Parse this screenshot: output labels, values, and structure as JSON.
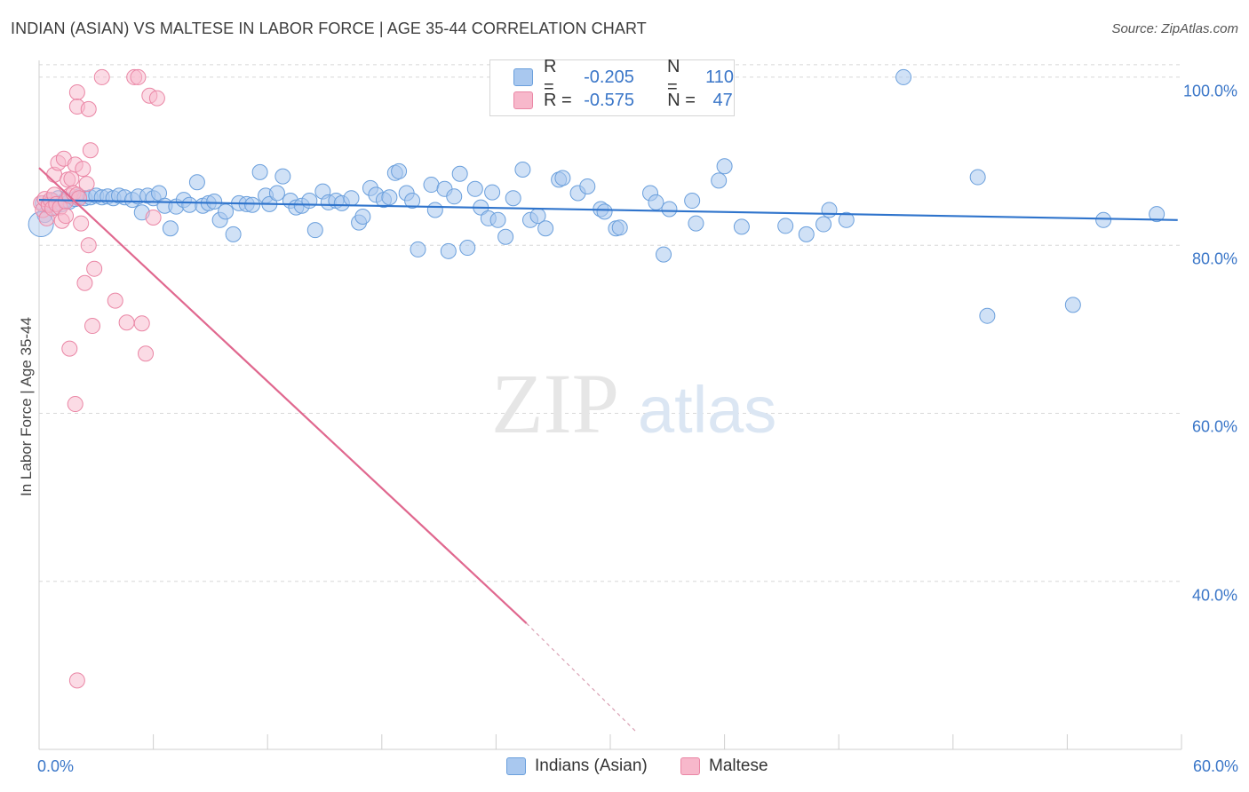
{
  "header": {
    "title": "INDIAN (ASIAN) VS MALTESE IN LABOR FORCE | AGE 35-44 CORRELATION CHART",
    "source": "Source: ZipAtlas.com"
  },
  "watermark": {
    "zip": "ZIP",
    "atlas": "atlas"
  },
  "colors": {
    "blue_fill": "#a9c8ef",
    "blue_stroke": "#6a9fdc",
    "blue_line": "#2f74cc",
    "pink_fill": "#f7b8cb",
    "pink_stroke": "#ea86a5",
    "pink_line": "#e0688f",
    "grid": "#d8d8d8",
    "tick_text": "#3a76c8"
  },
  "legend": {
    "rows": [
      {
        "r_label": "R =",
        "r_value": "-0.205",
        "n_label": "N =",
        "n_value": "110"
      },
      {
        "r_label": "R =",
        "r_value": "-0.575",
        "n_label": "N =",
        "n_value": "47"
      }
    ],
    "bottom": [
      "Indians (Asian)",
      "Maltese"
    ]
  },
  "chart_data": {
    "type": "scatter",
    "title": "INDIAN (ASIAN) VS MALTESE IN LABOR FORCE | AGE 35-44 CORRELATION CHART",
    "xlabel": "",
    "ylabel": "In Labor Force | Age 35-44",
    "xlim": [
      0,
      60
    ],
    "ylim": [
      20,
      102
    ],
    "x_tick_labels": [
      "0.0%",
      "60.0%"
    ],
    "y_ticks": [
      40,
      60,
      80,
      100
    ],
    "y_tick_labels": [
      "40.0%",
      "60.0%",
      "80.0%",
      "100.0%"
    ],
    "grid": "horizontal dashed",
    "legend_position": "top-center",
    "series": [
      {
        "name": "Indians (Asian)",
        "r": -0.205,
        "n": 110,
        "trend": {
          "x": [
            0,
            59.8
          ],
          "y": [
            85.4,
            83.0
          ],
          "dashed_after": null
        },
        "points": [
          [
            0.2,
            85.0
          ],
          [
            0.3,
            83.6
          ],
          [
            0.5,
            84.8
          ],
          [
            0.7,
            85.3
          ],
          [
            0.8,
            84.5
          ],
          [
            1.0,
            85.6
          ],
          [
            1.2,
            84.9
          ],
          [
            1.4,
            85.4
          ],
          [
            1.6,
            85.2
          ],
          [
            1.9,
            85.5
          ],
          [
            2.1,
            85.8
          ],
          [
            2.4,
            85.6
          ],
          [
            2.7,
            85.7
          ],
          [
            3.0,
            85.9
          ],
          [
            3.3,
            85.7
          ],
          [
            3.6,
            85.8
          ],
          [
            3.9,
            85.6
          ],
          [
            4.2,
            85.9
          ],
          [
            4.5,
            85.7
          ],
          [
            4.9,
            85.4
          ],
          [
            5.2,
            85.8
          ],
          [
            5.4,
            83.9
          ],
          [
            5.7,
            85.9
          ],
          [
            6.0,
            85.6
          ],
          [
            6.3,
            86.2
          ],
          [
            6.6,
            84.7
          ],
          [
            6.9,
            82.0
          ],
          [
            7.2,
            84.6
          ],
          [
            7.6,
            85.4
          ],
          [
            7.9,
            84.8
          ],
          [
            8.3,
            87.5
          ],
          [
            8.6,
            84.7
          ],
          [
            8.9,
            85.0
          ],
          [
            9.2,
            85.2
          ],
          [
            9.5,
            83.0
          ],
          [
            9.8,
            84.0
          ],
          [
            10.2,
            81.3
          ],
          [
            10.5,
            85.0
          ],
          [
            10.9,
            84.9
          ],
          [
            11.2,
            84.8
          ],
          [
            11.6,
            88.7
          ],
          [
            11.9,
            85.9
          ],
          [
            12.1,
            84.9
          ],
          [
            12.5,
            86.2
          ],
          [
            12.8,
            88.2
          ],
          [
            13.2,
            85.3
          ],
          [
            13.5,
            84.5
          ],
          [
            13.8,
            84.7
          ],
          [
            14.2,
            85.3
          ],
          [
            14.5,
            81.8
          ],
          [
            14.9,
            86.4
          ],
          [
            15.2,
            85.1
          ],
          [
            15.6,
            85.3
          ],
          [
            15.9,
            85.0
          ],
          [
            16.4,
            85.6
          ],
          [
            16.8,
            82.7
          ],
          [
            17.0,
            83.4
          ],
          [
            17.4,
            86.8
          ],
          [
            17.7,
            86.0
          ],
          [
            18.1,
            85.4
          ],
          [
            18.4,
            85.7
          ],
          [
            18.7,
            88.6
          ],
          [
            18.9,
            88.8
          ],
          [
            19.3,
            86.2
          ],
          [
            19.6,
            85.3
          ],
          [
            19.9,
            79.5
          ],
          [
            20.6,
            87.2
          ],
          [
            20.8,
            84.2
          ],
          [
            21.3,
            86.7
          ],
          [
            21.5,
            79.3
          ],
          [
            21.8,
            85.8
          ],
          [
            22.1,
            88.5
          ],
          [
            22.5,
            79.7
          ],
          [
            22.9,
            86.7
          ],
          [
            23.2,
            84.5
          ],
          [
            23.6,
            83.2
          ],
          [
            23.8,
            86.3
          ],
          [
            24.1,
            83.0
          ],
          [
            24.5,
            81.0
          ],
          [
            24.9,
            85.6
          ],
          [
            25.4,
            89.0
          ],
          [
            25.8,
            83.0
          ],
          [
            26.2,
            83.5
          ],
          [
            26.6,
            82.0
          ],
          [
            27.3,
            87.8
          ],
          [
            27.5,
            88.0
          ],
          [
            28.3,
            86.2
          ],
          [
            28.8,
            87.0
          ],
          [
            29.5,
            84.3
          ],
          [
            29.7,
            84.0
          ],
          [
            30.3,
            82.0
          ],
          [
            30.5,
            82.1
          ],
          [
            32.1,
            86.2
          ],
          [
            32.4,
            85.1
          ],
          [
            32.8,
            78.9
          ],
          [
            33.1,
            84.3
          ],
          [
            34.3,
            85.3
          ],
          [
            34.5,
            82.6
          ],
          [
            35.7,
            87.7
          ],
          [
            36.0,
            89.4
          ],
          [
            36.9,
            82.2
          ],
          [
            39.2,
            82.3
          ],
          [
            40.3,
            81.3
          ],
          [
            41.2,
            82.5
          ],
          [
            41.5,
            84.2
          ],
          [
            42.4,
            83.0
          ],
          [
            45.4,
            100.0
          ],
          [
            49.3,
            88.1
          ],
          [
            49.8,
            71.6
          ],
          [
            54.3,
            72.9
          ],
          [
            55.9,
            83.0
          ],
          [
            58.7,
            83.7
          ]
        ]
      },
      {
        "name": "Maltese",
        "r": -0.575,
        "n": 47,
        "trend": {
          "x": [
            0,
            25.6
          ],
          "y": [
            89.2,
            35.0
          ],
          "dashed_until": [
            31.4,
            22.0
          ]
        },
        "points": [
          [
            0.1,
            85.0
          ],
          [
            0.2,
            84.2
          ],
          [
            0.3,
            85.5
          ],
          [
            0.4,
            83.2
          ],
          [
            0.5,
            84.8
          ],
          [
            0.6,
            85.4
          ],
          [
            0.7,
            84.4
          ],
          [
            0.8,
            86.0
          ],
          [
            0.8,
            88.4
          ],
          [
            0.9,
            84.9
          ],
          [
            1.0,
            89.8
          ],
          [
            1.1,
            84.5
          ],
          [
            1.2,
            82.9
          ],
          [
            1.3,
            90.3
          ],
          [
            1.4,
            85.2
          ],
          [
            1.5,
            87.8
          ],
          [
            1.6,
            85.9
          ],
          [
            1.7,
            87.9
          ],
          [
            1.8,
            86.2
          ],
          [
            1.9,
            89.6
          ],
          [
            2.0,
            86.0
          ],
          [
            2.1,
            85.6
          ],
          [
            2.2,
            82.6
          ],
          [
            2.3,
            89.1
          ],
          [
            2.4,
            75.5
          ],
          [
            2.5,
            87.3
          ],
          [
            2.6,
            80.0
          ],
          [
            2.7,
            91.3
          ],
          [
            2.8,
            70.4
          ],
          [
            2.9,
            77.2
          ],
          [
            1.6,
            67.7
          ],
          [
            1.9,
            61.1
          ],
          [
            2.0,
            98.2
          ],
          [
            2.0,
            96.5
          ],
          [
            2.6,
            96.2
          ],
          [
            3.3,
            100.0
          ],
          [
            4.0,
            73.4
          ],
          [
            4.6,
            70.8
          ],
          [
            5.0,
            100.0
          ],
          [
            5.2,
            100.0
          ],
          [
            5.4,
            70.7
          ],
          [
            5.6,
            67.1
          ],
          [
            5.8,
            97.8
          ],
          [
            6.0,
            83.3
          ],
          [
            6.2,
            97.5
          ],
          [
            2.0,
            28.2
          ],
          [
            1.4,
            83.5
          ]
        ]
      }
    ]
  }
}
